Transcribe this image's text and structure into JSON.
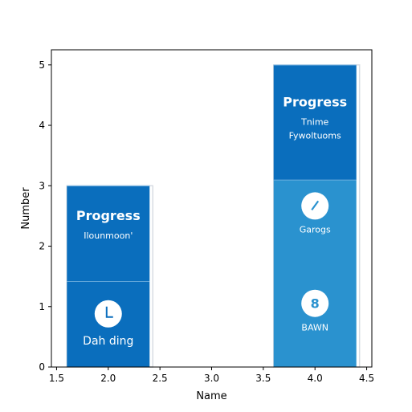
{
  "chart_data": {
    "type": "bar",
    "xlabel": "Name",
    "ylabel": "Number",
    "xlim": [
      1.45,
      4.55
    ],
    "ylim": [
      0,
      5.25
    ],
    "x_ticks": [
      "1.5",
      "2.0",
      "2.5",
      "3.0",
      "3.5",
      "4.0",
      "4.5"
    ],
    "y_ticks": [
      "0",
      "1",
      "2",
      "3",
      "4",
      "5"
    ],
    "bars": [
      {
        "x": 2.0,
        "width": 0.8,
        "value": 3,
        "segments": [
          {
            "from": 0,
            "to": 1.42,
            "color": "#0a6ebd",
            "label": "Dah ding",
            "icon": "clock-icon"
          },
          {
            "from": 1.42,
            "to": 3,
            "color": "#0a6ebd",
            "title": "Progress",
            "label": "Ilounmoon'"
          }
        ]
      },
      {
        "x": 4.0,
        "width": 0.8,
        "value": 5,
        "segments": [
          {
            "from": 0,
            "to": 3.1,
            "color": "#2a92cf",
            "label": "Garogs",
            "label2": "BAWN",
            "icon": "check-icon",
            "icon2": "badge-icon",
            "icon2_text": "8"
          },
          {
            "from": 3.1,
            "to": 5,
            "color": "#0a6ebd",
            "title": "Progress",
            "label": "Tnime",
            "label2": "Fywoltuoms"
          }
        ]
      }
    ],
    "grid": false,
    "legend": "none"
  }
}
